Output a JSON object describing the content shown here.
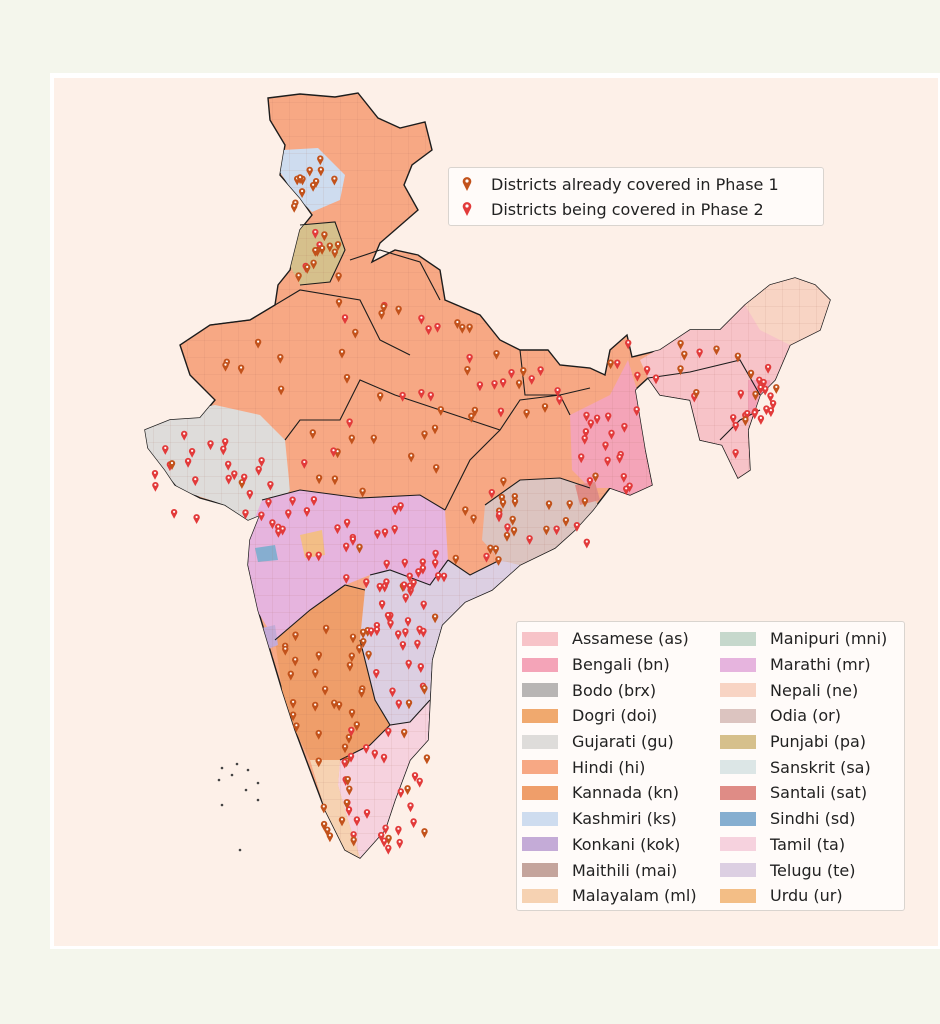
{
  "map": {
    "marker_legend": [
      {
        "label": "Districts already covered in Phase 1",
        "color": "#c2521b",
        "icon": "phase1-pin-icon"
      },
      {
        "label": "Districts being covered in Phase 2",
        "color": "#e23a3a",
        "icon": "phase2-pin-icon"
      }
    ],
    "language_legend_left": [
      {
        "label": "Assamese (as)",
        "color": "#f7c3c8"
      },
      {
        "label": "Bengali (bn)",
        "color": "#f4a4b8"
      },
      {
        "label": "Bodo (brx)",
        "color": "#b8b5b4"
      },
      {
        "label": "Dogri (doi)",
        "color": "#f0a96e"
      },
      {
        "label": "Gujarati (gu)",
        "color": "#dedcda"
      },
      {
        "label": "Hindi (hi)",
        "color": "#f7a884"
      },
      {
        "label": "Kannada (kn)",
        "color": "#ef9e6a"
      },
      {
        "label": "Kashmiri (ks)",
        "color": "#cedcef"
      },
      {
        "label": "Konkani (kok)",
        "color": "#c4abd7"
      },
      {
        "label": "Maithili (mai)",
        "color": "#c4a49c"
      },
      {
        "label": "Malayalam (ml)",
        "color": "#f6d2b2"
      }
    ],
    "language_legend_right": [
      {
        "label": "Manipuri (mni)",
        "color": "#c6d8cc"
      },
      {
        "label": "Marathi (mr)",
        "color": "#e6b4de"
      },
      {
        "label": "Nepali (ne)",
        "color": "#f8d4c4"
      },
      {
        "label": "Odia (or)",
        "color": "#dcc4c0"
      },
      {
        "label": "Punjabi (pa)",
        "color": "#d6c08c"
      },
      {
        "label": "Sanskrit (sa)",
        "color": "#dce6e6"
      },
      {
        "label": "Santali (sat)",
        "color": "#df8c86"
      },
      {
        "label": "Sindhi (sd)",
        "color": "#86aed0"
      },
      {
        "label": "Tamil (ta)",
        "color": "#f6d2de"
      },
      {
        "label": "Telugu (te)",
        "color": "#dccfe2"
      },
      {
        "label": "Urdu (ur)",
        "color": "#f3be86"
      }
    ]
  }
}
